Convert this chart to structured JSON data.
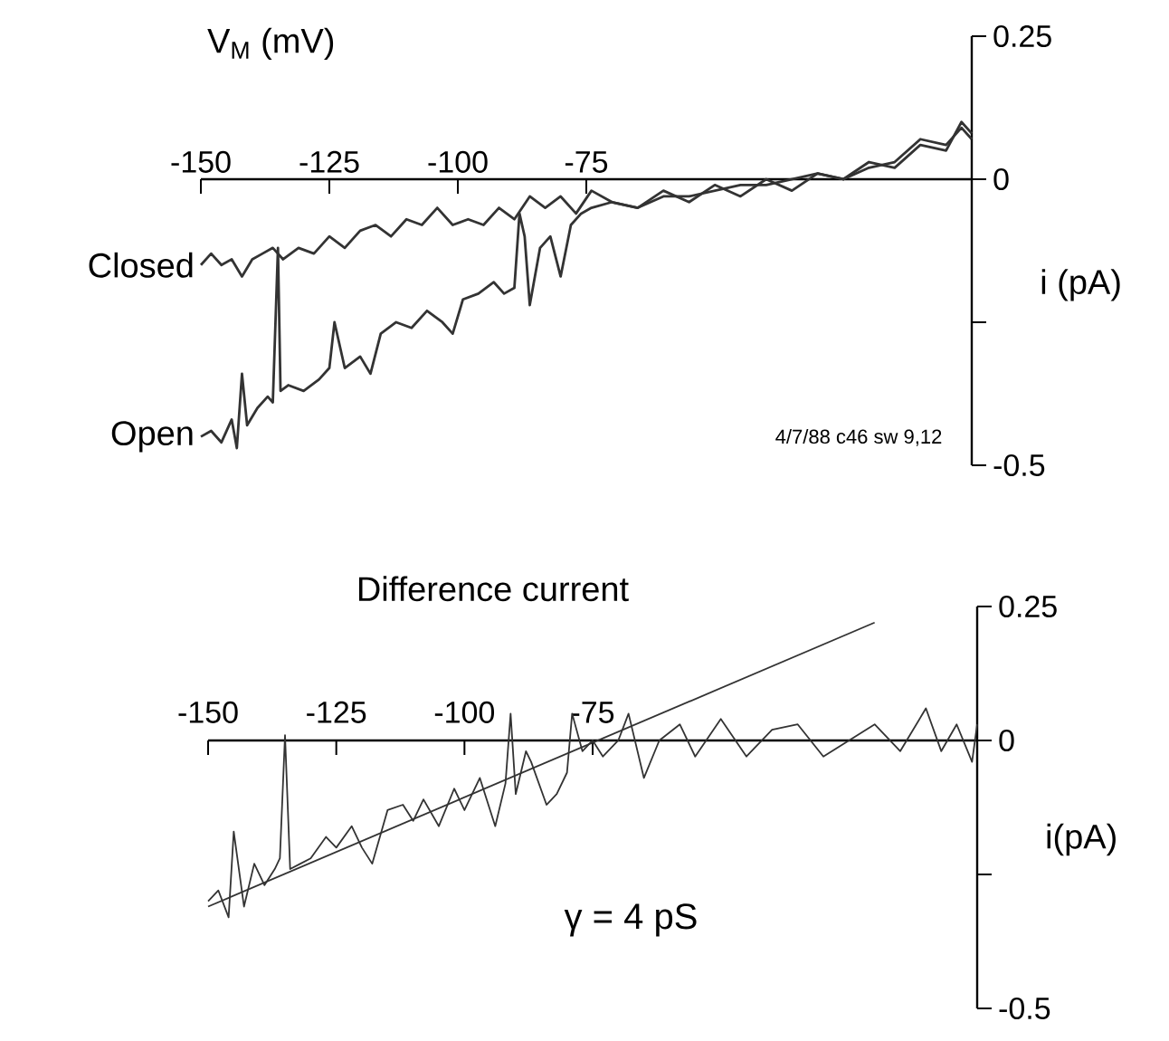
{
  "chart_data": [
    {
      "type": "line",
      "xlabel": "V$_{M}$ (mV)",
      "ylabel": "i (pA)",
      "xlim": [
        -150,
        0
      ],
      "ylim": [
        -0.5,
        0.25
      ],
      "xticks": [
        -150,
        -125,
        -100,
        -75
      ],
      "yticks": [
        0.25,
        0,
        {
          "value": -0.25,
          "label": null
        },
        -0.5
      ],
      "marker": "none",
      "line_style": "solid",
      "grid": false,
      "annotations": [
        "4/7/88 c46 sw 9,12"
      ],
      "series": [
        {
          "name": "Closed",
          "color": "#333333",
          "x": [
            -150,
            -148,
            -146,
            -144,
            -142,
            -140,
            -138,
            -136,
            -134,
            -131,
            -128,
            -125,
            -122,
            -119,
            -116,
            -113,
            -110,
            -107,
            -104,
            -101,
            -98,
            -95,
            -92,
            -89,
            -86,
            -83,
            -80,
            -77,
            -74,
            -70,
            -65,
            -60,
            -55,
            -50,
            -45,
            -40,
            -35,
            -30,
            -25,
            -20,
            -15,
            -10,
            -5,
            -2,
            0
          ],
          "values": [
            -0.15,
            -0.13,
            -0.15,
            -0.14,
            -0.17,
            -0.14,
            -0.13,
            -0.12,
            -0.14,
            -0.12,
            -0.13,
            -0.1,
            -0.12,
            -0.09,
            -0.08,
            -0.1,
            -0.07,
            -0.08,
            -0.05,
            -0.08,
            -0.07,
            -0.08,
            -0.05,
            -0.07,
            -0.03,
            -0.05,
            -0.03,
            -0.06,
            -0.02,
            -0.04,
            -0.05,
            -0.02,
            -0.04,
            -0.01,
            -0.03,
            0.0,
            -0.02,
            0.01,
            0.0,
            0.03,
            0.02,
            0.06,
            0.05,
            0.1,
            0.08
          ]
        },
        {
          "name": "Open",
          "color": "#333333",
          "x": [
            -150,
            -148,
            -146,
            -144,
            -143,
            -142,
            -141,
            -139,
            -137,
            -136,
            -135,
            -134.5,
            -133,
            -130,
            -127,
            -125,
            -124,
            -122,
            -119,
            -117,
            -115,
            -112,
            -109,
            -106,
            -103,
            -101,
            -99,
            -96,
            -93,
            -91,
            -89,
            -88,
            -87,
            -86,
            -84,
            -82,
            -80,
            -78,
            -76,
            -74,
            -70,
            -65,
            -60,
            -55,
            -50,
            -45,
            -40,
            -35,
            -30,
            -25,
            -20,
            -15,
            -10,
            -5,
            -2,
            0
          ],
          "values": [
            -0.45,
            -0.44,
            -0.46,
            -0.42,
            -0.47,
            -0.34,
            -0.43,
            -0.4,
            -0.38,
            -0.39,
            -0.12,
            -0.37,
            -0.36,
            -0.37,
            -0.35,
            -0.33,
            -0.25,
            -0.33,
            -0.31,
            -0.34,
            -0.27,
            -0.25,
            -0.26,
            -0.23,
            -0.25,
            -0.27,
            -0.21,
            -0.2,
            -0.18,
            -0.2,
            -0.19,
            -0.06,
            -0.1,
            -0.22,
            -0.12,
            -0.1,
            -0.17,
            -0.08,
            -0.06,
            -0.05,
            -0.04,
            -0.05,
            -0.03,
            -0.03,
            -0.02,
            -0.01,
            -0.01,
            0.0,
            0.01,
            0.0,
            0.02,
            0.03,
            0.07,
            0.06,
            0.09,
            0.07
          ]
        }
      ]
    },
    {
      "type": "line",
      "title": "Difference current",
      "ylabel": "i(pA)",
      "xlim": [
        -150,
        0
      ],
      "ylim": [
        -0.5,
        0.25
      ],
      "xticks": [
        -150,
        -125,
        -100,
        -75
      ],
      "yticks": [
        0.25,
        0,
        {
          "value": -0.25,
          "label": null
        },
        -0.5
      ],
      "marker": "none",
      "line_style": "solid",
      "grid": false,
      "annotations": [
        "γ = 4 pS"
      ],
      "series": [
        {
          "color": "#333333",
          "x": [
            -150,
            -148,
            -146,
            -145,
            -143,
            -141,
            -139,
            -137,
            -136,
            -135,
            -134,
            -132,
            -130,
            -127,
            -125,
            -122,
            -120,
            -118,
            -115,
            -112,
            -110,
            -108,
            -105,
            -102,
            -100,
            -97,
            -94,
            -92,
            -91,
            -90,
            -88,
            -87,
            -84,
            -82,
            -80,
            -79,
            -77,
            -75,
            -73,
            -70,
            -68,
            -65,
            -62,
            -58,
            -55,
            -50,
            -45,
            -40,
            -35,
            -30,
            -25,
            -20,
            -15,
            -10,
            -7,
            -4,
            -1,
            0
          ],
          "values": [
            -0.3,
            -0.28,
            -0.33,
            -0.17,
            -0.31,
            -0.23,
            -0.27,
            -0.24,
            -0.22,
            0.01,
            -0.24,
            -0.23,
            -0.22,
            -0.18,
            -0.2,
            -0.16,
            -0.2,
            -0.23,
            -0.13,
            -0.12,
            -0.15,
            -0.11,
            -0.16,
            -0.09,
            -0.13,
            -0.07,
            -0.16,
            -0.08,
            0.05,
            -0.1,
            -0.02,
            -0.04,
            -0.12,
            -0.1,
            -0.06,
            0.05,
            -0.02,
            0.0,
            -0.03,
            0.0,
            0.05,
            -0.07,
            0.0,
            0.03,
            -0.03,
            0.04,
            -0.03,
            0.02,
            0.03,
            -0.03,
            0.0,
            0.03,
            -0.02,
            0.06,
            -0.02,
            0.03,
            -0.04,
            0.03
          ]
        },
        {
          "color": "#333333",
          "x": [
            -150,
            -20
          ],
          "values": [
            -0.31,
            0.22
          ]
        }
      ]
    }
  ]
}
